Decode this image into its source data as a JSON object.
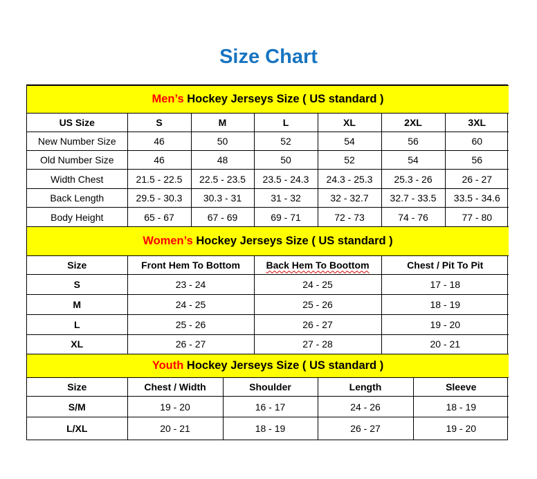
{
  "title": "Size Chart",
  "colors": {
    "title": "#1874c1",
    "section_bg": "#ffff00",
    "highlight": "#ff0000"
  },
  "men": {
    "highlight": "Men’s",
    "rest": " Hockey Jerseys Size ( US standard )",
    "headers": [
      "US Size",
      "S",
      "M",
      "L",
      "XL",
      "2XL",
      "3XL"
    ],
    "rows": [
      [
        "New Number Size",
        "46",
        "50",
        "52",
        "54",
        "56",
        "60"
      ],
      [
        "Old Number Size",
        "46",
        "48",
        "50",
        "52",
        "54",
        "56"
      ],
      [
        "Width Chest",
        "21.5 - 22.5",
        "22.5 - 23.5",
        "23.5 - 24.3",
        "24.3 - 25.3",
        "25.3 - 26",
        "26 - 27"
      ],
      [
        "Back Length",
        "29.5 - 30.3",
        "30.3 - 31",
        "31 - 32",
        "32 - 32.7",
        "32.7 - 33.5",
        "33.5 - 34.6"
      ],
      [
        "Body Height",
        "65 - 67",
        "67 - 69",
        "69 - 71",
        "72 - 73",
        "74 - 76",
        "77 - 80"
      ]
    ]
  },
  "women": {
    "highlight": "Women’s",
    "rest": " Hockey Jerseys Size ( US standard )",
    "headers": [
      "Size",
      "Front Hem To Bottom",
      "Back Hem To Boottom",
      "Chest / Pit To Pit"
    ],
    "rows": [
      [
        "S",
        "23 - 24",
        "24 - 25",
        "17 - 18"
      ],
      [
        "M",
        "24 - 25",
        "25 - 26",
        "18 - 19"
      ],
      [
        "L",
        "25 - 26",
        "26 - 27",
        "19 - 20"
      ],
      [
        "XL",
        "26 - 27",
        "27 - 28",
        "20 - 21"
      ]
    ]
  },
  "youth": {
    "highlight": "Youth",
    "rest": " Hockey Jerseys Size ( US standard )",
    "headers": [
      "Size",
      "Chest / Width",
      "Shoulder",
      "Length",
      "Sleeve"
    ],
    "rows": [
      [
        "S/M",
        "19 - 20",
        "16 - 17",
        "24 - 26",
        "18 - 19"
      ],
      [
        "L/XL",
        "20 - 21",
        "18 - 19",
        "26 - 27",
        "19 - 20"
      ]
    ]
  }
}
